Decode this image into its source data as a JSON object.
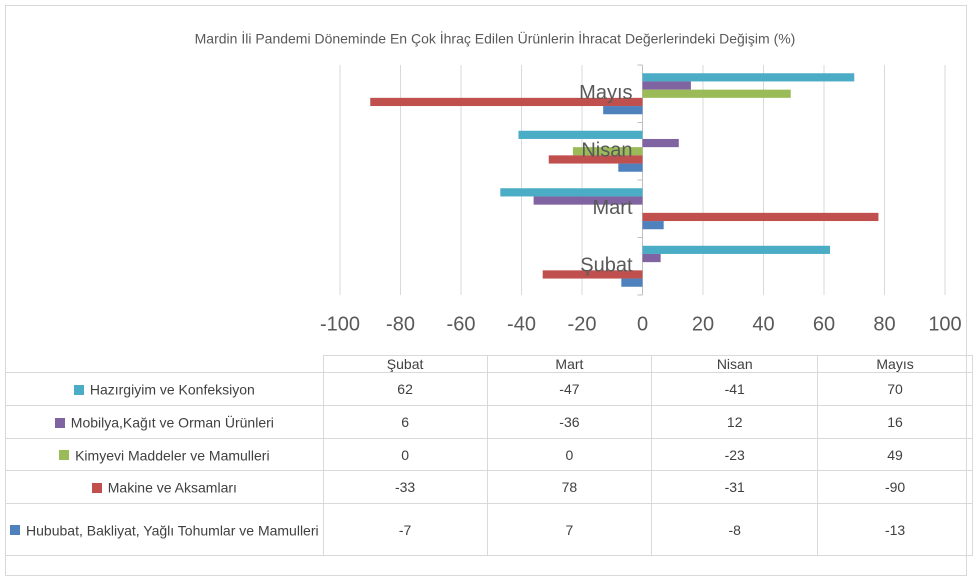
{
  "chart_data": {
    "type": "bar",
    "orientation": "horizontal",
    "title": "Mardin İli Pandemi Döneminde En Çok İhraç Edilen Ürünlerin İhracat Değerlerindeki Değişim (%)",
    "categories": [
      "Şubat",
      "Mart",
      "Nisan",
      "Mayıs"
    ],
    "series": [
      {
        "name": "Hazırgiyim ve Konfeksiyon",
        "color": "#4bacc6",
        "values": [
          62,
          -47,
          -41,
          70
        ]
      },
      {
        "name": "Mobilya,Kağıt ve Orman Ürünleri",
        "color": "#8064a2",
        "values": [
          6,
          -36,
          12,
          16
        ]
      },
      {
        "name": "Kimyevi Maddeler ve Mamulleri",
        "color": "#9bbb59",
        "values": [
          0,
          0,
          -23,
          49
        ]
      },
      {
        "name": "Makine ve Aksamları",
        "color": "#c0504d",
        "values": [
          -33,
          78,
          -31,
          -90
        ]
      },
      {
        "name": "Hububat, Bakliyat, Yağlı Tohumlar ve Mamulleri",
        "color": "#4f81bd",
        "values": [
          -7,
          7,
          -8,
          -13
        ]
      }
    ],
    "xlim": [
      -100,
      100
    ],
    "xticks": [
      -100,
      -80,
      -60,
      -40,
      -20,
      0,
      20,
      40,
      60,
      80,
      100
    ],
    "grid": true,
    "legend": "data-table"
  }
}
